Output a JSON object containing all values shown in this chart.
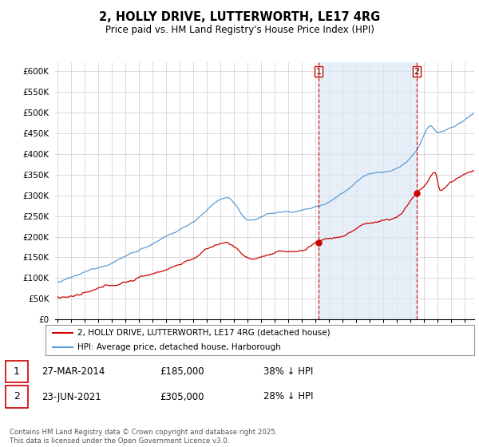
{
  "title": "2, HOLLY DRIVE, LUTTERWORTH, LE17 4RG",
  "subtitle": "Price paid vs. HM Land Registry's House Price Index (HPI)",
  "ylabel_ticks": [
    "£0",
    "£50K",
    "£100K",
    "£150K",
    "£200K",
    "£250K",
    "£300K",
    "£350K",
    "£400K",
    "£450K",
    "£500K",
    "£550K",
    "£600K"
  ],
  "ylim": [
    0,
    620000
  ],
  "xlim_start": 1995.0,
  "xlim_end": 2025.7,
  "hpi_color": "#5b9bd5",
  "hpi_fill_color": "#dce9f5",
  "price_color": "#cc0000",
  "sale1_date": "27-MAR-2014",
  "sale1_price": 185000,
  "sale1_label": "38% ↓ HPI",
  "sale1_year": 2014.22,
  "sale2_date": "23-JUN-2021",
  "sale2_price": 305000,
  "sale2_label": "28% ↓ HPI",
  "sale2_year": 2021.47,
  "legend_line1": "2, HOLLY DRIVE, LUTTERWORTH, LE17 4RG (detached house)",
  "legend_line2": "HPI: Average price, detached house, Harborough",
  "footnote": "Contains HM Land Registry data © Crown copyright and database right 2025.\nThis data is licensed under the Open Government Licence v3.0.",
  "background_color": "#ffffff",
  "grid_color": "#cccccc"
}
